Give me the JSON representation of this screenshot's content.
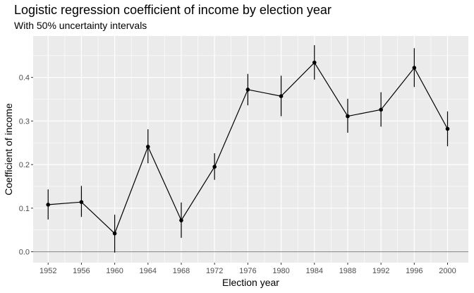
{
  "chart_data": {
    "type": "scatter",
    "title": "Logistic regression coefficient of income by election year",
    "subtitle": "With 50% uncertainty intervals",
    "xlabel": "Election year",
    "ylabel": "Coefficient of income",
    "x": [
      1952,
      1956,
      1960,
      1964,
      1968,
      1972,
      1976,
      1980,
      1984,
      1988,
      1992,
      1996,
      2000
    ],
    "y": [
      0.108,
      0.114,
      0.042,
      0.241,
      0.072,
      0.195,
      0.372,
      0.357,
      0.434,
      0.311,
      0.326,
      0.422,
      0.282
    ],
    "lower": [
      0.074,
      0.08,
      -0.002,
      0.203,
      0.032,
      0.165,
      0.336,
      0.311,
      0.395,
      0.273,
      0.287,
      0.378,
      0.242
    ],
    "upper": [
      0.143,
      0.151,
      0.085,
      0.281,
      0.113,
      0.226,
      0.408,
      0.404,
      0.474,
      0.351,
      0.366,
      0.467,
      0.322
    ],
    "x_ticks": [
      1952,
      1956,
      1960,
      1964,
      1968,
      1972,
      1976,
      1980,
      1984,
      1988,
      1992,
      1996,
      2000
    ],
    "y_ticks": [
      0.0,
      0.1,
      0.2,
      0.3,
      0.4
    ],
    "y_tick_labels": [
      "0.0",
      "0.1",
      "0.2",
      "0.3",
      "0.4"
    ],
    "xlim": [
      1950.2,
      2002.5
    ],
    "ylim": [
      -0.025,
      0.495
    ],
    "reference_line_y": 0,
    "grid": true,
    "colors": {
      "panel": "#ebebeb",
      "grid": "#ffffff",
      "line": "#000000",
      "reference": "#808080"
    }
  }
}
